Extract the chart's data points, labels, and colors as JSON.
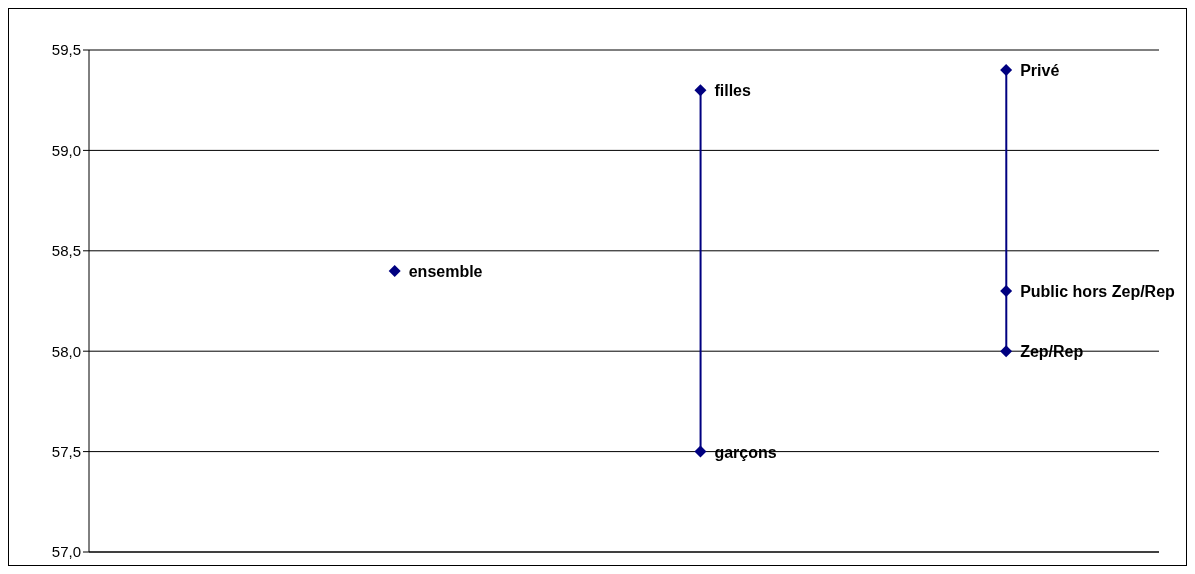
{
  "chart_data": {
    "type": "scatter",
    "categories": [
      null,
      null,
      null
    ],
    "series": [
      {
        "type": "bar",
        "color": "#000080",
        "base": [
          null,
          57.5,
          58.0
        ],
        "values": [
          null,
          1.8,
          1.4
        ]
      },
      {
        "name": "ensemble",
        "color": "#000080",
        "values": [
          58.4,
          null,
          null
        ]
      },
      {
        "name": "filles",
        "color": "#000080",
        "values": [
          null,
          59.3,
          null
        ]
      },
      {
        "name": "garçons",
        "color": "#000080",
        "values": [
          null,
          57.5,
          null
        ]
      },
      {
        "name": "Privé",
        "color": "#000080",
        "values": [
          null,
          null,
          59.4
        ]
      },
      {
        "name": "Public hors Zep/Rep",
        "color": "#000080",
        "values": [
          null,
          null,
          58.3
        ]
      },
      {
        "name": "Zep/Rep",
        "color": "#000080",
        "values": [
          null,
          null,
          58.0
        ]
      }
    ],
    "ylim": [
      57,
      59.5
    ],
    "yticks": [
      {
        "value": 57,
        "label": "57,0"
      },
      {
        "value": 57.5,
        "label": "57,5"
      },
      {
        "value": 58,
        "label": "58,0"
      },
      {
        "value": 58.5,
        "label": "58,5"
      },
      {
        "value": 59,
        "label": "59,0"
      },
      {
        "value": 59.5,
        "label": "59,5"
      }
    ],
    "grid": "y",
    "marker": "diamond",
    "legend": false
  }
}
